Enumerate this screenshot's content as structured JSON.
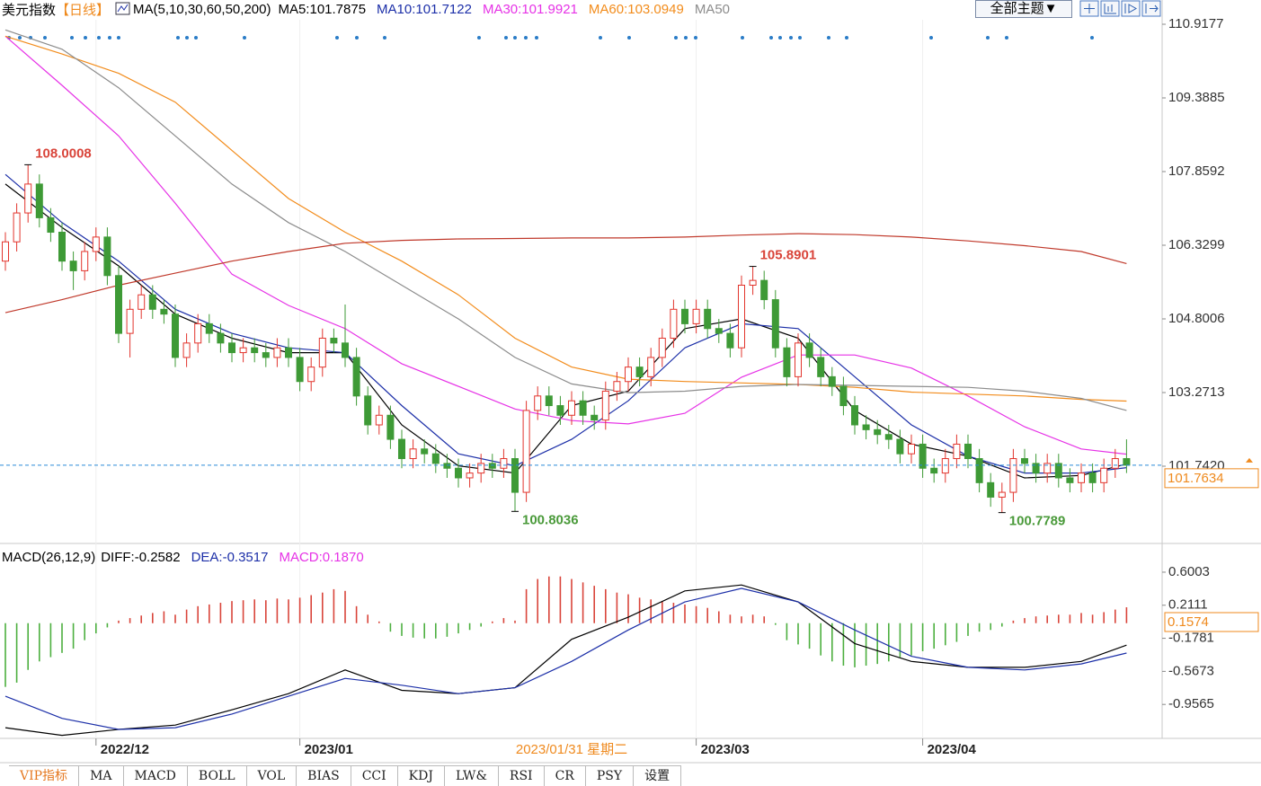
{
  "chart_data": [
    {
      "type": "candlestick",
      "title": "美元指数",
      "period": "【日线】",
      "ma_title": "MA(5,10,30,60,50,200)",
      "categories": [
        null,
        null,
        null,
        null,
        null,
        null,
        null,
        null,
        "2022/12",
        null,
        null,
        null,
        null,
        null,
        null,
        null,
        null,
        null,
        null,
        null,
        null,
        null,
        null,
        null,
        null,
        null,
        "2023/01",
        null,
        null,
        null,
        null,
        null,
        null,
        null,
        null,
        null,
        null,
        null,
        null,
        null,
        null,
        null,
        null,
        null,
        null,
        null,
        null,
        null,
        null,
        null,
        null,
        null,
        null,
        null,
        null,
        null,
        null,
        null,
        null,
        null,
        null,
        "2023/03",
        null,
        null,
        null,
        null,
        null,
        null,
        null,
        null,
        null,
        null,
        null,
        null,
        null,
        null,
        null,
        null,
        null,
        null,
        null,
        "2023/04",
        null,
        null,
        null,
        null,
        null,
        null,
        null,
        null,
        null,
        null,
        null,
        null,
        null,
        null,
        null,
        null,
        null,
        null
      ],
      "cursor_label": "2023/01/31 星期二",
      "open": [
        106.0,
        106.4,
        107.0,
        107.6,
        106.9,
        106.6,
        106.0,
        105.8,
        106.2,
        106.5,
        105.7,
        104.5,
        105.0,
        105.3,
        105.0,
        104.9,
        104.0,
        104.3,
        104.7,
        104.5,
        104.3,
        104.1,
        104.2,
        104.1,
        104.0,
        104.2,
        104.0,
        103.5,
        103.8,
        104.4,
        104.3,
        104.0,
        103.2,
        102.6,
        102.8,
        102.3,
        101.9,
        102.1,
        102.0,
        101.8,
        101.7,
        101.5,
        101.6,
        101.8,
        101.7,
        101.9,
        101.2,
        102.9,
        103.2,
        103.0,
        102.8,
        103.1,
        102.8,
        102.7,
        103.3,
        103.5,
        103.8,
        103.6,
        104.0,
        104.4,
        105.0,
        104.7,
        105.0,
        104.6,
        104.5,
        104.2,
        105.5,
        105.6,
        105.2,
        104.2,
        103.6,
        104.3,
        104.0,
        103.6,
        103.4,
        103.0,
        102.6,
        102.5,
        102.4,
        102.3,
        102.0,
        102.2,
        101.7,
        101.6,
        101.9,
        102.2,
        101.9,
        101.4,
        101.1,
        101.2,
        101.9,
        101.8,
        101.6,
        101.8,
        101.5,
        101.4,
        101.6,
        101.4,
        101.7,
        101.9
      ],
      "high": [
        106.6,
        107.2,
        108.0008,
        107.8,
        107.1,
        106.8,
        106.2,
        106.4,
        106.7,
        106.7,
        105.9,
        105.2,
        105.5,
        105.5,
        105.2,
        105.1,
        104.5,
        104.9,
        104.9,
        104.7,
        104.5,
        104.4,
        104.4,
        104.3,
        104.4,
        104.4,
        104.2,
        104.0,
        104.6,
        104.6,
        105.1,
        104.2,
        103.4,
        103.0,
        103.0,
        102.5,
        102.3,
        102.3,
        102.2,
        102.0,
        101.9,
        101.8,
        102.0,
        102.0,
        102.1,
        102.1,
        103.1,
        103.4,
        103.4,
        103.2,
        103.3,
        103.3,
        103.0,
        103.5,
        103.7,
        104.0,
        104.0,
        104.2,
        104.6,
        105.2,
        105.2,
        105.2,
        105.2,
        104.8,
        104.7,
        105.7,
        105.8901,
        105.8,
        105.4,
        104.4,
        104.5,
        104.5,
        104.2,
        103.8,
        103.6,
        103.2,
        102.8,
        102.7,
        102.6,
        102.5,
        102.4,
        102.4,
        101.9,
        102.1,
        102.4,
        102.4,
        102.1,
        101.6,
        101.4,
        102.1,
        102.1,
        102.0,
        102.0,
        102.0,
        101.7,
        101.8,
        101.8,
        101.9,
        102.1,
        102.3
      ],
      "low": [
        105.8,
        106.2,
        106.8,
        106.7,
        106.4,
        105.8,
        105.4,
        105.6,
        106.0,
        105.5,
        104.3,
        104.0,
        104.8,
        104.8,
        104.7,
        103.8,
        103.8,
        104.1,
        104.3,
        104.1,
        103.9,
        103.9,
        103.9,
        103.8,
        103.8,
        103.8,
        103.3,
        103.3,
        103.6,
        104.1,
        103.8,
        103.0,
        102.4,
        102.4,
        102.1,
        101.7,
        101.7,
        101.8,
        101.6,
        101.5,
        101.3,
        101.3,
        101.4,
        101.5,
        101.5,
        100.8036,
        101.0,
        102.7,
        102.8,
        102.6,
        102.6,
        102.6,
        102.5,
        102.5,
        103.1,
        103.3,
        103.4,
        103.4,
        103.8,
        104.2,
        104.5,
        104.5,
        104.4,
        104.3,
        104.0,
        104.0,
        105.3,
        105.0,
        104.0,
        103.4,
        103.4,
        103.8,
        103.4,
        103.2,
        102.8,
        102.4,
        102.3,
        102.2,
        102.1,
        101.8,
        101.8,
        101.5,
        101.4,
        101.4,
        101.7,
        101.7,
        101.2,
        100.9,
        100.7789,
        101.0,
        101.6,
        101.4,
        101.4,
        101.3,
        101.2,
        101.2,
        101.2,
        101.2,
        101.5,
        101.6
      ],
      "close": [
        106.4,
        107.0,
        107.6,
        106.9,
        106.6,
        106.0,
        105.8,
        106.2,
        106.5,
        105.7,
        104.5,
        105.0,
        105.3,
        105.0,
        104.9,
        104.0,
        104.3,
        104.7,
        104.5,
        104.3,
        104.1,
        104.2,
        104.1,
        104.0,
        104.2,
        104.0,
        103.5,
        103.8,
        104.4,
        104.3,
        104.0,
        103.2,
        102.6,
        102.8,
        102.3,
        101.9,
        102.1,
        102.0,
        101.8,
        101.7,
        101.5,
        101.6,
        101.8,
        101.7,
        101.9,
        101.2,
        102.9,
        103.2,
        103.0,
        102.8,
        103.1,
        102.8,
        102.7,
        103.3,
        103.5,
        103.8,
        103.6,
        104.0,
        104.4,
        105.0,
        104.7,
        105.0,
        104.6,
        104.5,
        104.2,
        105.5,
        105.6,
        105.2,
        104.2,
        103.6,
        104.3,
        104.0,
        103.6,
        103.4,
        103.0,
        102.6,
        102.5,
        102.4,
        102.3,
        102.0,
        102.2,
        101.7,
        101.6,
        101.9,
        102.2,
        101.9,
        101.4,
        101.1,
        101.2,
        101.9,
        101.8,
        101.6,
        101.8,
        101.5,
        101.4,
        101.6,
        101.4,
        101.7,
        101.9,
        101.7634
      ],
      "colors": {
        "up": "#e2342c",
        "down": "#3e9a36",
        "high_label": "#d9443a",
        "low_label": "#4a9a3a",
        "last_line": "#2a8ad6",
        "last_box": "#ef8a1e"
      },
      "ylim": [
        100.2127,
        110.9177
      ],
      "yticks": [
        110.9177,
        109.3885,
        107.8592,
        106.3299,
        104.8006,
        103.2713,
        {
          "value": 101.742,
          "label": "101.7420"
        }
      ],
      "ma_x": [
        0,
        5,
        10,
        15,
        20,
        25,
        30,
        35,
        40,
        45,
        50,
        55,
        60,
        65,
        70,
        75,
        80,
        85,
        90,
        95,
        99
      ],
      "lines": [
        {
          "legend": "MA5:101.7875",
          "color": "#000000",
          "values": [
            107.6,
            106.7,
            105.9,
            104.9,
            104.4,
            104.1,
            104.1,
            102.6,
            101.75,
            101.6,
            103.0,
            103.3,
            104.6,
            104.8,
            104.4,
            102.9,
            102.2,
            101.95,
            101.5,
            101.55,
            101.7875
          ]
        },
        {
          "legend": "MA10:101.7122",
          "color": "#1c2fa8",
          "values": [
            107.8,
            106.8,
            106.0,
            105.0,
            104.5,
            104.2,
            104.1,
            103.0,
            102.0,
            101.75,
            102.3,
            103.1,
            104.2,
            104.7,
            104.6,
            103.6,
            102.6,
            101.95,
            101.6,
            101.6,
            101.7122
          ]
        },
        {
          "legend": "MA30:101.9921",
          "color": "#e632e6",
          "values": [
            110.67,
            109.65,
            108.6,
            107.2,
            105.73,
            105.08,
            104.6,
            103.87,
            103.4,
            102.93,
            102.69,
            102.62,
            102.84,
            103.59,
            104.05,
            104.05,
            103.78,
            103.2,
            102.56,
            102.1,
            101.9921
          ]
        },
        {
          "legend": "MA60:103.0949",
          "color": "#f28c1c",
          "values": [
            110.67,
            110.3,
            109.9,
            109.3,
            108.3,
            107.3,
            106.6,
            106.0,
            105.3,
            104.4,
            103.8,
            103.55,
            103.5,
            103.47,
            103.44,
            103.38,
            103.28,
            103.24,
            103.2,
            103.13,
            103.0949
          ]
        },
        {
          "legend": "MA50",
          "color": "#8c8c8c",
          "values": [
            110.8,
            110.4,
            109.6,
            108.6,
            107.6,
            106.8,
            106.2,
            105.5,
            104.8,
            104.0,
            103.45,
            103.27,
            103.3,
            103.4,
            103.44,
            103.42,
            103.4,
            103.38,
            103.3,
            103.15,
            102.9
          ]
        },
        {
          "color": "#c0392b",
          "values": [
            104.93,
            105.2,
            105.5,
            105.75,
            106.0,
            106.2,
            106.37,
            106.43,
            106.46,
            106.47,
            106.48,
            106.48,
            106.5,
            106.54,
            106.57,
            106.55,
            106.5,
            106.42,
            106.32,
            106.2,
            105.95
          ]
        }
      ]
    },
    {
      "type": "macd",
      "title": "MACD(26,12,9)",
      "ylim": [
        -1.3562,
        0.6739
      ],
      "yticks": [
        0.6003,
        0.2111,
        -0.1781,
        -0.5673,
        -0.9565
      ],
      "readout": "0.1574",
      "x": [
        0,
        5,
        10,
        15,
        20,
        25,
        30,
        35,
        40,
        45,
        50,
        55,
        60,
        65,
        70,
        75,
        80,
        85,
        90,
        95,
        99
      ],
      "lines": [
        {
          "legend": "DIFF:-0.2582",
          "color": "#000000",
          "values": [
            -1.23,
            -1.32,
            -1.25,
            -1.2,
            -1.02,
            -0.83,
            -0.55,
            -0.79,
            -0.83,
            -0.76,
            -0.19,
            0.07,
            0.38,
            0.45,
            0.25,
            -0.24,
            -0.45,
            -0.52,
            -0.52,
            -0.45,
            -0.2582
          ]
        },
        {
          "legend": "DEA:-0.3517",
          "color": "#1c2fa8",
          "values": [
            -0.86,
            -1.12,
            -1.25,
            -1.23,
            -1.07,
            -0.86,
            -0.65,
            -0.73,
            -0.83,
            -0.76,
            -0.45,
            -0.08,
            0.25,
            0.41,
            0.25,
            -0.08,
            -0.39,
            -0.52,
            -0.55,
            -0.48,
            -0.3517
          ]
        }
      ],
      "histogram": {
        "legend": "MACD:0.1870",
        "legend_color": "#e632e6",
        "up_color": "#d9443a",
        "down_color": "#4caf3f",
        "values": [
          -0.75,
          -0.7,
          -0.55,
          -0.45,
          -0.4,
          -0.35,
          -0.3,
          -0.2,
          -0.12,
          -0.05,
          0.03,
          0.06,
          0.09,
          0.12,
          0.14,
          0.1,
          0.16,
          0.2,
          0.22,
          0.24,
          0.26,
          0.27,
          0.28,
          0.27,
          0.29,
          0.28,
          0.3,
          0.33,
          0.36,
          0.4,
          0.38,
          0.2,
          0.1,
          0.02,
          -0.1,
          -0.15,
          -0.17,
          -0.18,
          -0.18,
          -0.16,
          -0.12,
          -0.08,
          -0.04,
          0.02,
          0.06,
          0.03,
          0.4,
          0.52,
          0.55,
          0.55,
          0.52,
          0.48,
          0.44,
          0.4,
          0.36,
          0.34,
          0.3,
          0.28,
          0.26,
          0.24,
          0.22,
          0.2,
          0.18,
          0.14,
          0.1,
          0.08,
          0.1,
          0.08,
          -0.02,
          -0.2,
          -0.25,
          -0.3,
          -0.38,
          -0.45,
          -0.5,
          -0.52,
          -0.5,
          -0.48,
          -0.45,
          -0.4,
          -0.38,
          -0.33,
          -0.3,
          -0.26,
          -0.22,
          -0.15,
          -0.1,
          -0.08,
          -0.04,
          0.03,
          0.06,
          0.08,
          0.09,
          0.1,
          0.1,
          0.12,
          0.1,
          0.13,
          0.16,
          0.187
        ]
      }
    }
  ],
  "toolbar": {
    "theme_button": "全部主题▼"
  },
  "tabs": [
    "VIP指标",
    "MA",
    "MACD",
    "BOLL",
    "VOL",
    "BIAS",
    "CCI",
    "KDJ",
    "LW&",
    "RSI",
    "CR",
    "PSY",
    "设置"
  ]
}
